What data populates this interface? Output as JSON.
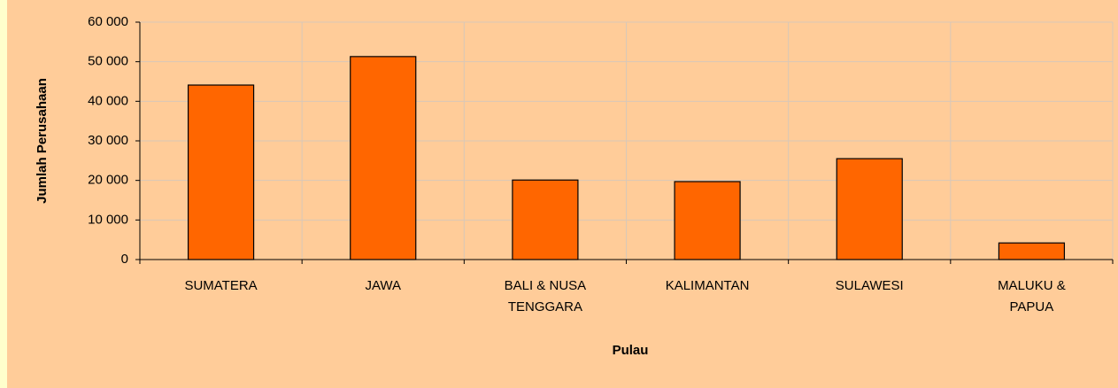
{
  "chart_data": {
    "type": "bar",
    "categories": [
      "SUMATERA",
      "JAWA",
      "BALI & NUSA\nTENGGARA",
      "KALIMANTAN",
      "SULAWESI",
      "MALUKU &\nPAPUA"
    ],
    "values": [
      44100,
      51300,
      20100,
      19700,
      25500,
      4200
    ],
    "color": "#FF6600",
    "ylabel": "Jumlah Perusahaan",
    "xlabel": "Pulau",
    "ylim": [
      0,
      60000
    ],
    "yticks": [
      0,
      {
        "value": 10000,
        "label": "10 000"
      },
      {
        "value": 20000,
        "label": "20 000"
      },
      {
        "value": 30000,
        "label": "30 000"
      },
      {
        "value": 40000,
        "label": "40 000"
      },
      {
        "value": 50000,
        "label": "50 000"
      },
      {
        "value": 60000,
        "label": "60 000"
      }
    ],
    "grid": true
  }
}
